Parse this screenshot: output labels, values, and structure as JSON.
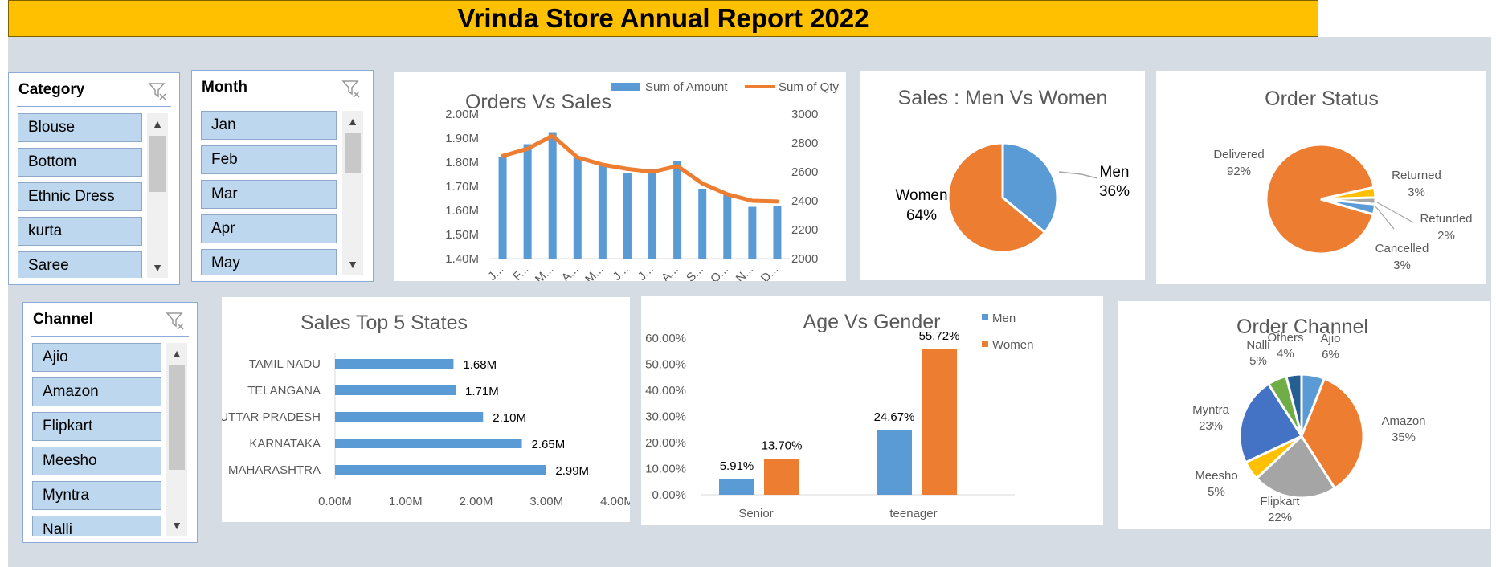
{
  "header": {
    "title": "Vrinda Store Annual Report 2022"
  },
  "colors": {
    "blue": "#5b9bd5",
    "orange": "#ed7d31",
    "gray": "#a5a5a5",
    "yellow": "#ffc000",
    "darkblue": "#4472c4",
    "green": "#70ad47",
    "navy": "#255e91",
    "header_bg": "#ffc000"
  },
  "slicers": {
    "category": {
      "title": "Category",
      "items": [
        "Blouse",
        "Bottom",
        "Ethnic Dress",
        "kurta",
        "Saree"
      ]
    },
    "month": {
      "title": "Month",
      "items": [
        "Jan",
        "Feb",
        "Mar",
        "Apr",
        "May"
      ]
    },
    "channel": {
      "title": "Channel",
      "items": [
        "Ajio",
        "Amazon",
        "Flipkart",
        "Meesho",
        "Myntra",
        "Nalli"
      ]
    }
  },
  "chart_data": [
    {
      "id": "orders-vs-sales",
      "type": "bar",
      "title": "Orders Vs Sales",
      "categories": [
        "J...",
        "F...",
        "M...",
        "A...",
        "M...",
        "J...",
        "J...",
        "A...",
        "S...",
        "O...",
        "N...",
        "D..."
      ],
      "series": [
        {
          "name": "Sum of Amount",
          "type": "bar",
          "axis": "left",
          "values": [
            1.82,
            1.875,
            1.925,
            1.82,
            1.795,
            1.755,
            1.77,
            1.805,
            1.69,
            1.665,
            1.615,
            1.62
          ]
        },
        {
          "name": "Sum of Qty",
          "type": "line",
          "axis": "right",
          "values": [
            2710,
            2760,
            2850,
            2700,
            2650,
            2620,
            2600,
            2640,
            2520,
            2445,
            2400,
            2395
          ]
        }
      ],
      "y_left": {
        "min": 1.4,
        "max": 2.0,
        "ticks": [
          "1.40M",
          "1.50M",
          "1.60M",
          "1.70M",
          "1.80M",
          "1.90M",
          "2.00M"
        ]
      },
      "y_right": {
        "min": 2000,
        "max": 3000,
        "ticks": [
          "2000",
          "2200",
          "2400",
          "2600",
          "2800",
          "3000"
        ]
      },
      "legend": "top"
    },
    {
      "id": "sales-men-women",
      "type": "pie",
      "title": "Sales : Men Vs Women",
      "labels": [
        "Men",
        "Women"
      ],
      "pct_labels": [
        "36%",
        "64%"
      ],
      "values": [
        36,
        64
      ]
    },
    {
      "id": "order-status",
      "type": "pie",
      "title": "Order Status",
      "labels": [
        "Delivered",
        "Returned",
        "Refunded",
        "Cancelled"
      ],
      "pct_labels": [
        "92%",
        "3%",
        "2%",
        "3%"
      ],
      "values": [
        92,
        3,
        2,
        3
      ]
    },
    {
      "id": "sales-top-5-states",
      "type": "bar",
      "orientation": "horizontal",
      "title": "Sales Top 5 States",
      "categories": [
        "TAMIL NADU",
        "TELANGANA",
        "UTTAR PRADESH",
        "KARNATAKA",
        "MAHARASHTRA"
      ],
      "values": [
        1.68,
        1.71,
        2.1,
        2.65,
        2.99
      ],
      "data_labels": [
        "1.68M",
        "1.71M",
        "2.10M",
        "2.65M",
        "2.99M"
      ],
      "x_ticks": [
        "0.00M",
        "1.00M",
        "2.00M",
        "3.00M",
        "4.00M"
      ],
      "xlim": [
        0,
        4
      ]
    },
    {
      "id": "age-vs-gender",
      "type": "bar",
      "title": "Age Vs Gender",
      "categories": [
        "Senior",
        "teenager"
      ],
      "series": [
        {
          "name": "Men",
          "values": [
            5.91,
            24.67
          ],
          "data_labels": [
            "5.91%",
            "24.67%"
          ]
        },
        {
          "name": "Women",
          "values": [
            13.7,
            55.72
          ],
          "data_labels": [
            "13.70%",
            "55.72%"
          ]
        }
      ],
      "y_ticks": [
        "0.00%",
        "10.00%",
        "20.00%",
        "30.00%",
        "40.00%",
        "50.00%",
        "60.00%"
      ],
      "ylim": [
        0,
        60
      ],
      "legend": "top-right"
    },
    {
      "id": "order-channel",
      "type": "pie",
      "title": "Order Channel",
      "labels": [
        "Ajio",
        "Amazon",
        "Flipkart",
        "Meesho",
        "Myntra",
        "Nalli",
        "Others"
      ],
      "pct_labels": [
        "6%",
        "35%",
        "22%",
        "5%",
        "23%",
        "5%",
        "4%"
      ],
      "values": [
        6,
        35,
        22,
        5,
        23,
        5,
        4
      ]
    }
  ]
}
